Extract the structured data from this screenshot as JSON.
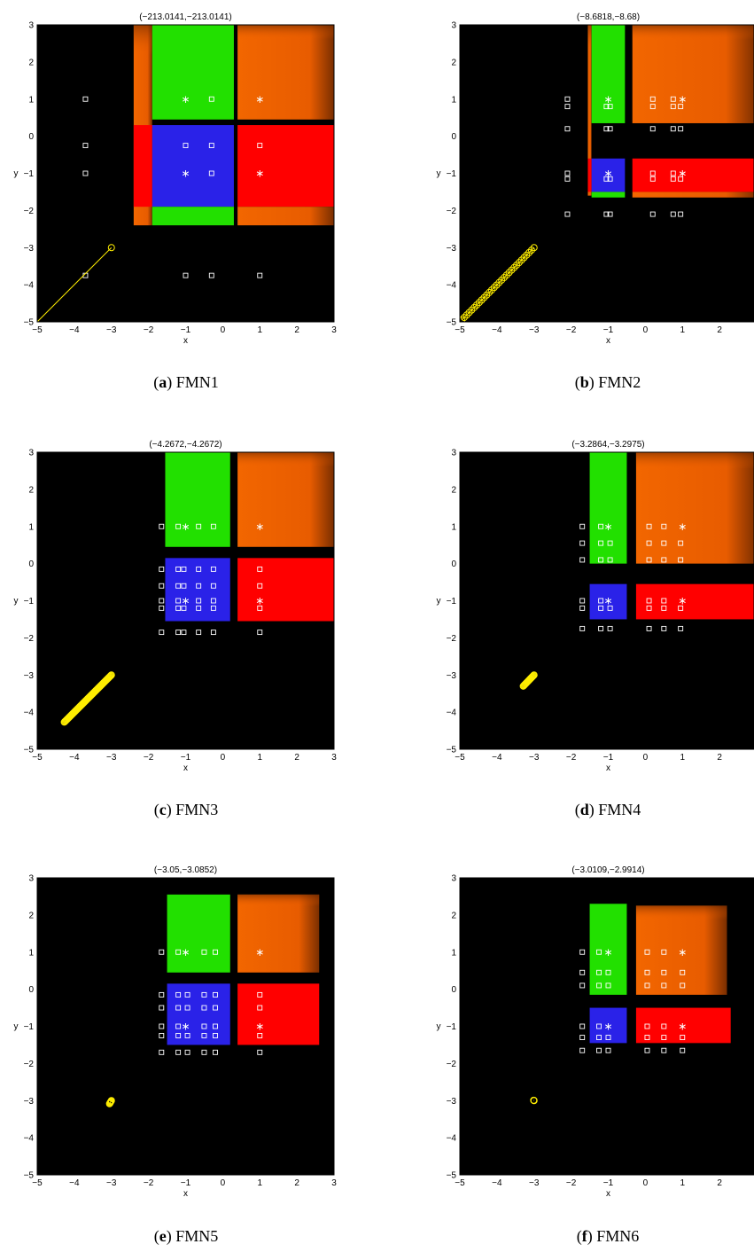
{
  "colors": {
    "plot_bg": "#000000",
    "green": "#22e000",
    "orange": "#f06000",
    "red": "#ff0000",
    "blue": "#2a22e8",
    "marker_white": "#ffffff",
    "path_yellow": "#ffee00"
  },
  "chart_data": [
    {
      "type": "scatter",
      "panel_letter": "a",
      "panel_name": "FMN1",
      "title": "(−213.0141,−213.0141)",
      "xlabel": "x",
      "ylabel": "y",
      "xlim": [
        -5,
        3
      ],
      "ylim": [
        -5,
        3
      ],
      "xticks": [
        "−5",
        "−4",
        "−3",
        "−2",
        "−1",
        "0",
        "1",
        "2",
        "3"
      ],
      "yticks": [
        "−5",
        "−4",
        "−3",
        "−2",
        "−1",
        "0",
        "1",
        "2",
        "3"
      ],
      "regions": [
        {
          "color": "orange",
          "x": [
            -2.4,
            -1.9
          ],
          "y": [
            -2.4,
            3
          ]
        },
        {
          "color": "red",
          "x": [
            -2.4,
            -1.9
          ],
          "y": [
            -1.9,
            0.3
          ]
        },
        {
          "color": "green",
          "x": [
            -1.9,
            0.3
          ],
          "y": [
            0.45,
            3
          ]
        },
        {
          "color": "blue",
          "x": [
            -1.9,
            0.3
          ],
          "y": [
            -1.9,
            0.3
          ]
        },
        {
          "color": "green",
          "x": [
            -1.9,
            0.3
          ],
          "y": [
            -2.4,
            -1.9
          ]
        },
        {
          "color": "orange",
          "x": [
            0.4,
            3
          ],
          "y": [
            0.45,
            3
          ]
        },
        {
          "color": "red",
          "x": [
            0.4,
            3
          ],
          "y": [
            -1.9,
            0.3
          ]
        },
        {
          "color": "orange",
          "x": [
            0.4,
            3
          ],
          "y": [
            -2.4,
            -1.9
          ]
        }
      ],
      "grid_x": [
        -3.7,
        -1.0,
        -0.3,
        1.0
      ],
      "grid_y": [
        1.0,
        -0.25,
        -1.0,
        -3.75
      ],
      "stars": [
        [
          -1,
          1
        ],
        [
          1,
          1
        ],
        [
          -1,
          -1
        ],
        [
          1,
          -1
        ]
      ],
      "path": {
        "start": [
          -3,
          -3
        ],
        "end": [
          -5,
          -5
        ],
        "circles": [
          [
            -3,
            -3
          ]
        ]
      }
    },
    {
      "type": "scatter",
      "panel_letter": "b",
      "panel_name": "FMN2",
      "title": "(−8.6818,−8.68)",
      "xlabel": "x",
      "ylabel": "y",
      "xlim": [
        -5,
        3
      ],
      "ylim": [
        -5,
        3
      ],
      "xticks": [
        "−5",
        "−4",
        "−3",
        "−2",
        "−1",
        "0",
        "1",
        "2"
      ],
      "yticks": [
        "−5",
        "−4",
        "−3",
        "−2",
        "−1",
        "0",
        "1",
        "2",
        "3"
      ],
      "regions": [
        {
          "color": "orange",
          "x": [
            -1.55,
            -1.45
          ],
          "y": [
            -1.6,
            3
          ]
        },
        {
          "color": "green",
          "x": [
            -1.45,
            -0.55
          ],
          "y": [
            0.35,
            3
          ]
        },
        {
          "color": "orange",
          "x": [
            -0.35,
            3
          ],
          "y": [
            0.35,
            3
          ]
        },
        {
          "color": "red",
          "x": [
            -1.55,
            -1.45
          ],
          "y": [
            -1.5,
            -0.6
          ]
        },
        {
          "color": "blue",
          "x": [
            -1.45,
            -0.55
          ],
          "y": [
            -1.5,
            -0.6
          ]
        },
        {
          "color": "green",
          "x": [
            -1.45,
            -0.55
          ],
          "y": [
            -1.65,
            -1.5
          ]
        },
        {
          "color": "red",
          "x": [
            -0.35,
            3
          ],
          "y": [
            -1.5,
            -0.6
          ]
        },
        {
          "color": "orange",
          "x": [
            -0.35,
            3
          ],
          "y": [
            -1.65,
            -1.5
          ]
        }
      ],
      "grid_x": [
        -2.1,
        -1.05,
        -0.95,
        0.2,
        0.75,
        0.95
      ],
      "grid_y": [
        1.0,
        0.8,
        0.2,
        -1.0,
        -1.15,
        -2.1
      ],
      "stars": [
        [
          -1,
          1
        ],
        [
          1,
          1
        ],
        [
          -1,
          -1
        ],
        [
          1,
          -1
        ]
      ],
      "path": {
        "start": [
          -3,
          -3
        ],
        "end": [
          -4.95,
          -4.95
        ],
        "circles_count": 30
      }
    },
    {
      "type": "scatter",
      "panel_letter": "c",
      "panel_name": "FMN3",
      "title": "(−4.2672,−4.2672)",
      "xlabel": "x",
      "ylabel": "y",
      "xlim": [
        -5,
        3
      ],
      "ylim": [
        -5,
        3
      ],
      "xticks": [
        "−5",
        "−4",
        "−3",
        "−2",
        "−1",
        "0",
        "1",
        "2",
        "3"
      ],
      "yticks": [
        "−5",
        "−4",
        "−3",
        "−2",
        "−1",
        "0",
        "1",
        "2",
        "3"
      ],
      "regions": [
        {
          "color": "green",
          "x": [
            -1.55,
            0.2
          ],
          "y": [
            0.45,
            3
          ]
        },
        {
          "color": "orange",
          "x": [
            0.4,
            3
          ],
          "y": [
            0.45,
            3
          ]
        },
        {
          "color": "blue",
          "x": [
            -1.55,
            0.2
          ],
          "y": [
            -1.55,
            0.15
          ]
        },
        {
          "color": "red",
          "x": [
            0.4,
            3
          ],
          "y": [
            -1.55,
            0.15
          ]
        }
      ],
      "grid_x": [
        -1.65,
        -1.2,
        -1.05,
        -0.65,
        -0.25,
        1.0
      ],
      "grid_y": [
        1.0,
        -0.15,
        -0.6,
        -1.0,
        -1.2,
        -1.85
      ],
      "stars": [
        [
          -1,
          1
        ],
        [
          1,
          1
        ],
        [
          -1,
          -1
        ],
        [
          1,
          -1
        ]
      ],
      "path": {
        "start": [
          -3,
          -3
        ],
        "end": [
          -4.27,
          -4.27
        ],
        "circles_count": 80
      }
    },
    {
      "type": "scatter",
      "panel_letter": "d",
      "panel_name": "FMN4",
      "title": "(−3.2864,−3.2975)",
      "xlabel": "x",
      "ylabel": "y",
      "xlim": [
        -5,
        3
      ],
      "ylim": [
        -5,
        3
      ],
      "xticks": [
        "−5",
        "−4",
        "−3",
        "−2",
        "−1",
        "0",
        "1",
        "2"
      ],
      "yticks": [
        "−5",
        "−4",
        "−3",
        "−2",
        "−1",
        "0",
        "1",
        "2",
        "3"
      ],
      "regions": [
        {
          "color": "green",
          "x": [
            -1.5,
            -0.5
          ],
          "y": [
            0.0,
            3
          ]
        },
        {
          "color": "orange",
          "x": [
            -0.25,
            3
          ],
          "y": [
            0.0,
            3
          ]
        },
        {
          "color": "blue",
          "x": [
            -1.5,
            -0.5
          ],
          "y": [
            -1.5,
            -0.55
          ]
        },
        {
          "color": "red",
          "x": [
            -0.25,
            3
          ],
          "y": [
            -1.5,
            -0.55
          ]
        }
      ],
      "grid_x": [
        -1.7,
        -1.2,
        -0.95,
        0.1,
        0.5,
        0.95
      ],
      "grid_y": [
        1.0,
        0.55,
        0.1,
        -1.0,
        -1.2,
        -1.75
      ],
      "stars": [
        [
          -1,
          1
        ],
        [
          1,
          1
        ],
        [
          -1,
          -1
        ],
        [
          1,
          -1
        ]
      ],
      "path": {
        "start": [
          -3,
          -3
        ],
        "end": [
          -3.29,
          -3.3
        ],
        "circles_count": 20
      }
    },
    {
      "type": "scatter",
      "panel_letter": "e",
      "panel_name": "FMN5",
      "title": "(−3.05,−3.0852)",
      "xlabel": "x",
      "ylabel": "y",
      "xlim": [
        -5,
        3
      ],
      "ylim": [
        -5,
        3
      ],
      "xticks": [
        "−5",
        "−4",
        "−3",
        "−2",
        "−1",
        "0",
        "1",
        "2",
        "3"
      ],
      "yticks": [
        "−5",
        "−4",
        "−3",
        "−2",
        "−1",
        "0",
        "1",
        "2",
        "3"
      ],
      "regions": [
        {
          "color": "green",
          "x": [
            -1.5,
            0.2
          ],
          "y": [
            0.45,
            2.55
          ]
        },
        {
          "color": "orange",
          "x": [
            0.4,
            2.6
          ],
          "y": [
            0.45,
            2.55
          ]
        },
        {
          "color": "blue",
          "x": [
            -1.5,
            0.2
          ],
          "y": [
            -1.5,
            0.15
          ]
        },
        {
          "color": "red",
          "x": [
            0.4,
            2.6
          ],
          "y": [
            -1.5,
            0.15
          ]
        }
      ],
      "grid_x": [
        -1.65,
        -1.2,
        -0.95,
        -0.5,
        -0.2,
        1.0
      ],
      "grid_y": [
        1.0,
        -0.15,
        -0.5,
        -1.0,
        -1.25,
        -1.7
      ],
      "stars": [
        [
          -1,
          1
        ],
        [
          1,
          1
        ],
        [
          -1,
          -1
        ],
        [
          1,
          -1
        ]
      ],
      "path": {
        "start": [
          -3,
          -3
        ],
        "end": [
          -3.05,
          -3.085
        ],
        "circles_count": 6
      }
    },
    {
      "type": "scatter",
      "panel_letter": "f",
      "panel_name": "FMN6",
      "title": "(−3.0109,−2.9914)",
      "xlabel": "x",
      "ylabel": "y",
      "xlim": [
        -5,
        3
      ],
      "ylim": [
        -5,
        3
      ],
      "xticks": [
        "−5",
        "−4",
        "−3",
        "−2",
        "−1",
        "0",
        "1",
        "2"
      ],
      "yticks": [
        "−5",
        "−4",
        "−3",
        "−2",
        "−1",
        "0",
        "1",
        "2",
        "3"
      ],
      "regions": [
        {
          "color": "green",
          "x": [
            -1.5,
            -0.5
          ],
          "y": [
            -0.15,
            2.3
          ]
        },
        {
          "color": "orange",
          "x": [
            -0.25,
            2.2
          ],
          "y": [
            -0.15,
            2.25
          ]
        },
        {
          "color": "blue",
          "x": [
            -1.5,
            -0.5
          ],
          "y": [
            -1.45,
            -0.5
          ]
        },
        {
          "color": "red",
          "x": [
            -0.25,
            2.3
          ],
          "y": [
            -1.45,
            -0.5
          ]
        }
      ],
      "grid_x": [
        -1.7,
        -1.25,
        -1.0,
        0.05,
        0.5,
        1.0
      ],
      "grid_y": [
        1.0,
        0.45,
        0.1,
        -1.0,
        -1.3,
        -1.65
      ],
      "stars": [
        [
          -1,
          1
        ],
        [
          1,
          1
        ],
        [
          -1,
          -1
        ],
        [
          1,
          -1
        ]
      ],
      "path": {
        "start": [
          -3,
          -3
        ],
        "end": [
          -3.01,
          -2.99
        ],
        "circles_count": 4
      }
    }
  ]
}
